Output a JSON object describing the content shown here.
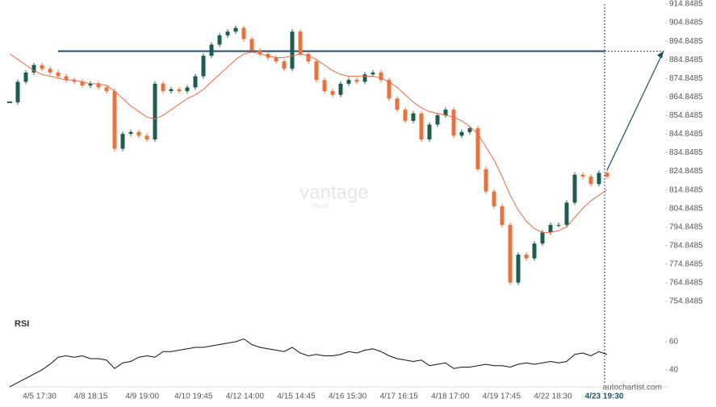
{
  "chart_data": {
    "type": "candlestick",
    "categories": [
      "4/5 17:30",
      "4/8 18:15",
      "4/9 19:00",
      "4/10 19:45",
      "4/12 14:00",
      "4/15 14:45",
      "4/16 15:30",
      "4/17 16:15",
      "4/18 17:00",
      "4/19 17:45",
      "4/22 18:30",
      "4/23 19:30"
    ],
    "close": [
      862,
      873,
      878,
      882,
      880,
      878,
      876,
      874,
      873,
      871,
      872,
      870,
      868,
      837,
      845,
      846,
      844,
      842,
      872,
      868,
      869,
      868,
      870,
      876,
      887,
      893,
      898,
      900,
      902,
      896,
      890,
      888,
      886,
      884,
      880,
      900,
      888,
      884,
      874,
      868,
      866,
      872,
      874,
      873,
      877,
      878,
      874,
      864,
      858,
      852,
      856,
      842,
      850,
      855,
      858,
      844,
      846,
      848,
      826,
      814,
      806,
      796,
      765,
      780,
      778,
      786,
      792,
      796,
      796,
      808,
      823,
      822,
      818,
      824,
      822
    ],
    "moving_average": [
      888,
      885,
      882,
      879,
      877,
      876,
      875,
      874,
      874,
      873,
      872,
      872,
      871,
      868,
      864,
      860,
      857,
      854,
      853,
      855,
      858,
      861,
      864,
      866,
      869,
      873,
      877,
      881,
      885,
      888,
      889,
      888,
      887,
      886,
      886,
      887,
      888,
      887,
      885,
      882,
      879,
      877,
      876,
      876,
      876,
      876,
      875,
      873,
      870,
      866,
      862,
      859,
      857,
      856,
      855,
      854,
      852,
      849,
      845,
      838,
      831,
      822,
      812,
      804,
      798,
      794,
      792,
      792,
      793,
      795,
      800,
      805,
      809,
      812,
      815
    ],
    "rsi": [
      28,
      31,
      34,
      37,
      40,
      44,
      49,
      50,
      49,
      50,
      48,
      48,
      47,
      41,
      45,
      46,
      49,
      50,
      49,
      53,
      53,
      54,
      55,
      56,
      56,
      57,
      58,
      59,
      60,
      62,
      58,
      56,
      55,
      54,
      53,
      56,
      52,
      50,
      51,
      50,
      50,
      51,
      53,
      52,
      54,
      55,
      53,
      50,
      48,
      47,
      46,
      47,
      43,
      44,
      45,
      41,
      42,
      42,
      43,
      44,
      43,
      43,
      42,
      44,
      45,
      44,
      45,
      46,
      45,
      46,
      51,
      52,
      50,
      53,
      51
    ],
    "up_color": "#1d5c4f",
    "down_color": "#e8713c",
    "ma_color": "#ee6a45",
    "level_color": "#1f4e6b",
    "level": 889.5,
    "target": 889.5,
    "ylim": [
      750.08,
      917.02
    ],
    "yticks": [
      754.8485,
      764.8485,
      774.8485,
      784.8485,
      794.8485,
      804.8485,
      814.8485,
      824.8485,
      834.8485,
      844.8485,
      854.8485,
      864.8485,
      874.8485,
      884.8485,
      894.8485,
      904.8485,
      914.8485
    ],
    "rsi_title": "RSI",
    "rsi_ylim": [
      25.1,
      76.6
    ],
    "rsi_yticks": [
      40,
      60
    ],
    "watermark": "vantage",
    "watermark_sub": "PLUS",
    "credit": "autochartist.com"
  }
}
